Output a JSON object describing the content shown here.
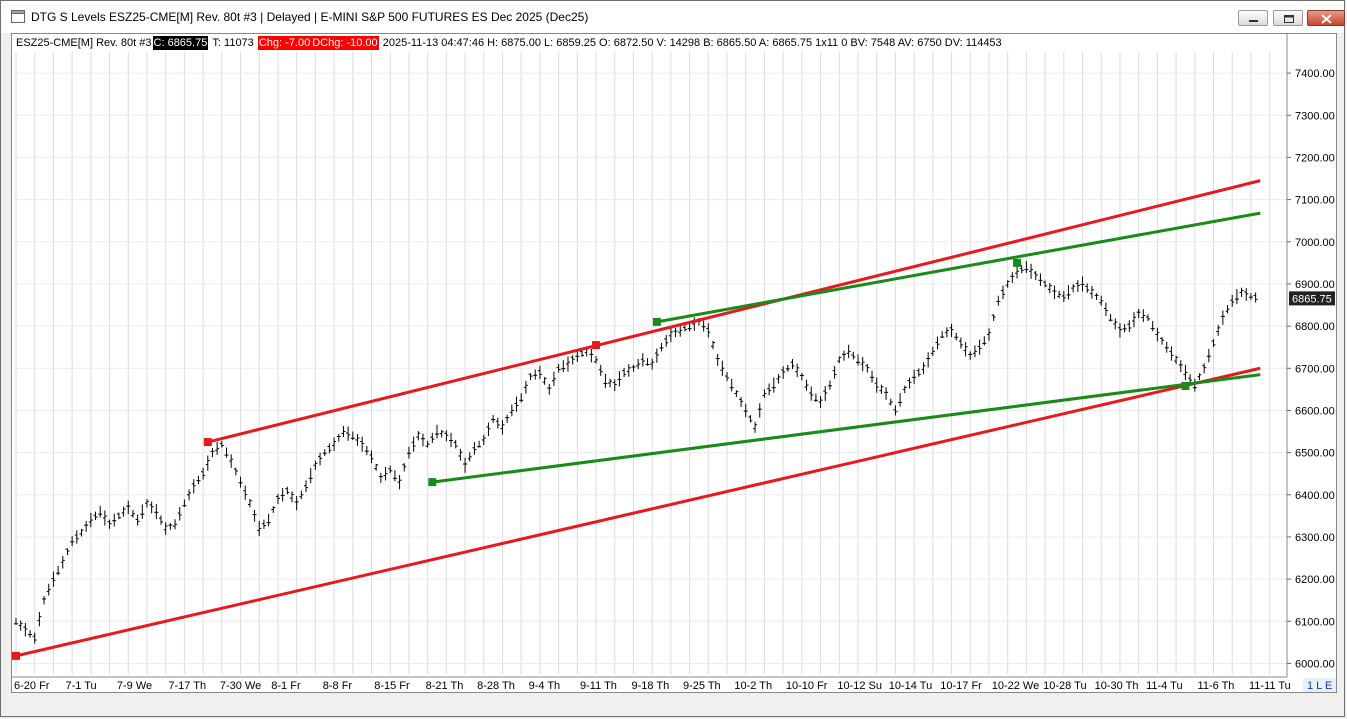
{
  "window": {
    "title": "DTG S Levels ESZ25-CME[M]  Rev. 80t #3 | Delayed | E-MINI S&P 500 FUTURES ES Dec 2025 (Dec25)"
  },
  "infobar": {
    "symbol": "ESZ25-CME[M]  Rev. 80t #3",
    "close": "C: 6865.75",
    "ticks": "T: 11073",
    "chg": "Chg: -7.00",
    "dchg": "DChg: -10.00",
    "stats": "2025-11-13 04:47:46 H: 6875.00 L: 6859.25 O: 6872.50 V: 14298 B: 6865.50 A: 6865.75 1x11 0 BV: 7548 AV: 6750 DV: 114453"
  },
  "status": {
    "badge": "1 L E"
  },
  "colors": {
    "channel_red": "#e8191e",
    "channel_green": "#1a8a1a",
    "bars": "#000000",
    "price_tag_bg": "#222222"
  },
  "chart_data": {
    "type": "bar",
    "ylim": [
      5975,
      7450
    ],
    "y_ticks": [
      "7400.00",
      "7300.00",
      "7200.00",
      "7100.00",
      "7000.00",
      "6900.00",
      "6800.00",
      "6700.00",
      "6600.00",
      "6500.00",
      "6400.00",
      "6300.00",
      "6200.00",
      "6100.00",
      "6000.00"
    ],
    "last_price": "6865.75",
    "x_labels": [
      "6-20 Fr",
      "7-1 Tu",
      "7-9 We",
      "7-17 Th",
      "7-30 We",
      "8-1 Fr",
      "8-8 Fr",
      "8-15 Fr",
      "8-21 Th",
      "8-28 Th",
      "9-4 Th",
      "9-11 Th",
      "9-18 Th",
      "9-25 Th",
      "10-2 Th",
      "10-10 Fr",
      "10-12 Su",
      "10-14 Tu",
      "10-17 Fr",
      "10-22 We",
      "10-28 Tu",
      "10-30 Th",
      "11-4 Tu",
      "11-6 Th",
      "11-11 Tu"
    ],
    "price_path": [
      [
        0,
        6100
      ],
      [
        2,
        6080
      ],
      [
        4,
        6060
      ],
      [
        6,
        6150
      ],
      [
        8,
        6200
      ],
      [
        10,
        6240
      ],
      [
        12,
        6290
      ],
      [
        14,
        6310
      ],
      [
        16,
        6340
      ],
      [
        18,
        6360
      ],
      [
        20,
        6330
      ],
      [
        22,
        6350
      ],
      [
        24,
        6370
      ],
      [
        26,
        6340
      ],
      [
        28,
        6380
      ],
      [
        30,
        6360
      ],
      [
        32,
        6320
      ],
      [
        34,
        6330
      ],
      [
        36,
        6380
      ],
      [
        38,
        6420
      ],
      [
        40,
        6450
      ],
      [
        42,
        6500
      ],
      [
        44,
        6520
      ],
      [
        46,
        6480
      ],
      [
        48,
        6430
      ],
      [
        50,
        6380
      ],
      [
        52,
        6320
      ],
      [
        54,
        6340
      ],
      [
        56,
        6390
      ],
      [
        58,
        6410
      ],
      [
        60,
        6380
      ],
      [
        62,
        6420
      ],
      [
        64,
        6470
      ],
      [
        66,
        6500
      ],
      [
        68,
        6520
      ],
      [
        70,
        6550
      ],
      [
        72,
        6540
      ],
      [
        74,
        6520
      ],
      [
        76,
        6490
      ],
      [
        78,
        6440
      ],
      [
        80,
        6460
      ],
      [
        82,
        6430
      ],
      [
        84,
        6500
      ],
      [
        86,
        6540
      ],
      [
        88,
        6520
      ],
      [
        90,
        6550
      ],
      [
        92,
        6540
      ],
      [
        94,
        6520
      ],
      [
        96,
        6470
      ],
      [
        98,
        6510
      ],
      [
        100,
        6530
      ],
      [
        102,
        6580
      ],
      [
        104,
        6560
      ],
      [
        106,
        6600
      ],
      [
        108,
        6630
      ],
      [
        110,
        6680
      ],
      [
        112,
        6690
      ],
      [
        114,
        6650
      ],
      [
        116,
        6700
      ],
      [
        118,
        6710
      ],
      [
        120,
        6730
      ],
      [
        122,
        6740
      ],
      [
        124,
        6720
      ],
      [
        126,
        6670
      ],
      [
        128,
        6660
      ],
      [
        130,
        6690
      ],
      [
        132,
        6700
      ],
      [
        134,
        6720
      ],
      [
        136,
        6710
      ],
      [
        138,
        6750
      ],
      [
        140,
        6780
      ],
      [
        142,
        6790
      ],
      [
        144,
        6800
      ],
      [
        146,
        6810
      ],
      [
        148,
        6790
      ],
      [
        150,
        6720
      ],
      [
        152,
        6680
      ],
      [
        154,
        6640
      ],
      [
        156,
        6600
      ],
      [
        158,
        6560
      ],
      [
        160,
        6640
      ],
      [
        162,
        6660
      ],
      [
        164,
        6690
      ],
      [
        166,
        6710
      ],
      [
        168,
        6680
      ],
      [
        170,
        6640
      ],
      [
        172,
        6620
      ],
      [
        174,
        6660
      ],
      [
        176,
        6720
      ],
      [
        178,
        6740
      ],
      [
        180,
        6720
      ],
      [
        182,
        6700
      ],
      [
        184,
        6660
      ],
      [
        186,
        6640
      ],
      [
        188,
        6600
      ],
      [
        190,
        6650
      ],
      [
        192,
        6680
      ],
      [
        194,
        6700
      ],
      [
        196,
        6740
      ],
      [
        198,
        6780
      ],
      [
        200,
        6790
      ],
      [
        202,
        6760
      ],
      [
        204,
        6730
      ],
      [
        206,
        6750
      ],
      [
        208,
        6780
      ],
      [
        210,
        6860
      ],
      [
        212,
        6900
      ],
      [
        214,
        6930
      ],
      [
        216,
        6940
      ],
      [
        218,
        6920
      ],
      [
        220,
        6900
      ],
      [
        222,
        6880
      ],
      [
        224,
        6870
      ],
      [
        226,
        6890
      ],
      [
        228,
        6900
      ],
      [
        230,
        6880
      ],
      [
        232,
        6860
      ],
      [
        234,
        6820
      ],
      [
        236,
        6790
      ],
      [
        238,
        6800
      ],
      [
        240,
        6830
      ],
      [
        242,
        6820
      ],
      [
        244,
        6780
      ],
      [
        246,
        6750
      ],
      [
        248,
        6720
      ],
      [
        250,
        6690
      ],
      [
        252,
        6660
      ],
      [
        254,
        6700
      ],
      [
        256,
        6760
      ],
      [
        258,
        6820
      ],
      [
        260,
        6860
      ],
      [
        262,
        6880
      ],
      [
        264,
        6870
      ],
      [
        266,
        6866
      ]
    ],
    "trendlines": [
      {
        "color": "red",
        "from": [
          0,
          6018
        ],
        "to": [
          266,
          6700
        ]
      },
      {
        "color": "red",
        "from": [
          41,
          6525
        ],
        "to": [
          266,
          7145
        ]
      },
      {
        "color": "green",
        "from": [
          89,
          6430
        ],
        "to": [
          266,
          6685
        ]
      },
      {
        "color": "green",
        "from": [
          137,
          6810
        ],
        "to": [
          266,
          7068
        ]
      }
    ],
    "anchors": [
      {
        "color": "red",
        "at": [
          0,
          6018
        ]
      },
      {
        "color": "red",
        "at": [
          41,
          6525
        ]
      },
      {
        "color": "red",
        "at": [
          124,
          6755
        ]
      },
      {
        "color": "green",
        "at": [
          89,
          6430
        ]
      },
      {
        "color": "green",
        "at": [
          137,
          6810
        ]
      },
      {
        "color": "green",
        "at": [
          214,
          6950
        ]
      },
      {
        "color": "green",
        "at": [
          250,
          6658
        ]
      }
    ]
  }
}
